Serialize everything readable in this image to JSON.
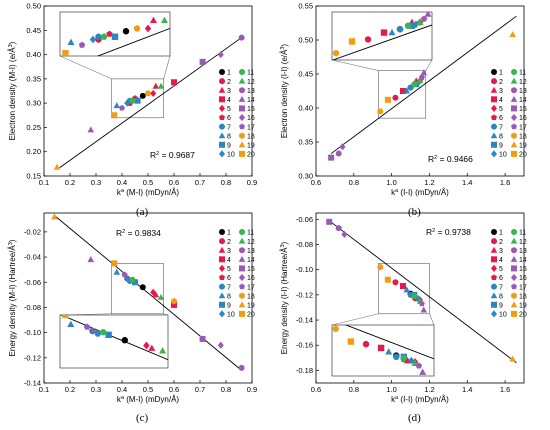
{
  "figure": {
    "panel_letters": [
      "(a)",
      "(b)",
      "(c)",
      "(d)"
    ]
  },
  "colors": {
    "black": "#000000",
    "green": "#3cb44b",
    "red": "#e6194b",
    "purple": "#9b59b6",
    "teal": "#1f9ea0",
    "orange": "#f39c12",
    "blue": "#2e86c1",
    "axis": "#000000",
    "inset_line": "#777777"
  },
  "legend": {
    "numbers": [
      "1",
      "2",
      "3",
      "4",
      "5",
      "6",
      "7",
      "8",
      "9",
      "10",
      "11",
      "12",
      "13",
      "14",
      "15",
      "16",
      "17",
      "18",
      "19",
      "20"
    ],
    "markers": [
      {
        "shape": "circle",
        "color": "#000000"
      },
      {
        "shape": "circle",
        "color": "#e6194b"
      },
      {
        "shape": "triangle",
        "color": "#e6194b"
      },
      {
        "shape": "square",
        "color": "#e6194b"
      },
      {
        "shape": "diamond",
        "color": "#e6194b"
      },
      {
        "shape": "pentagon",
        "color": "#e6194b"
      },
      {
        "shape": "circle",
        "color": "#2e86c1"
      },
      {
        "shape": "triangle",
        "color": "#2e86c1"
      },
      {
        "shape": "square",
        "color": "#2e86c1"
      },
      {
        "shape": "diamond",
        "color": "#2e86c1"
      },
      {
        "shape": "circle",
        "color": "#3cb44b"
      },
      {
        "shape": "triangle",
        "color": "#3cb44b"
      },
      {
        "shape": "circle",
        "color": "#9b59b6"
      },
      {
        "shape": "triangle",
        "color": "#9b59b6"
      },
      {
        "shape": "square",
        "color": "#9b59b6"
      },
      {
        "shape": "diamond",
        "color": "#9b59b6"
      },
      {
        "shape": "pentagon",
        "color": "#9b59b6"
      },
      {
        "shape": "circle",
        "color": "#f39c12"
      },
      {
        "shape": "triangle",
        "color": "#f39c12"
      },
      {
        "shape": "square",
        "color": "#f39c12"
      }
    ]
  },
  "chart_data": [
    {
      "type": "scatter",
      "panel": "(a)",
      "xlabel": "k^a (M-I) (mDyn/Å)",
      "ylabel": "Electron density (M-I) (e/Å^3)",
      "xlim": [
        0.1,
        0.9
      ],
      "ylim": [
        0.15,
        0.5
      ],
      "xticks": [
        "0.1",
        "0.2",
        "0.3",
        "0.4",
        "0.5",
        "0.6",
        "0.7",
        "0.8",
        "0.9"
      ],
      "yticks": [
        "0.15",
        "0.20",
        "0.25",
        "0.30",
        "0.35",
        "0.40",
        "0.45",
        "0.50"
      ],
      "annotation": "R^2 = 0.9687",
      "fit": {
        "x": [
          0.16,
          0.86
        ],
        "y": [
          0.167,
          0.435
        ]
      },
      "zoom": {
        "xlim": [
          0.36,
          0.56
        ],
        "ylim": [
          0.27,
          0.35
        ]
      },
      "points": [
        {
          "id": 1,
          "x": 0.48,
          "y": 0.315
        },
        {
          "id": 2,
          "x": 0.43,
          "y": 0.3
        },
        {
          "id": 3,
          "x": 0.53,
          "y": 0.335
        },
        {
          "id": 4,
          "x": 0.6,
          "y": 0.343
        },
        {
          "id": 5,
          "x": 0.52,
          "y": 0.32
        },
        {
          "id": 6,
          "x": 0.45,
          "y": 0.31
        },
        {
          "id": 7,
          "x": 0.43,
          "y": 0.305
        },
        {
          "id": 8,
          "x": 0.38,
          "y": 0.295
        },
        {
          "id": 9,
          "x": 0.46,
          "y": 0.305
        },
        {
          "id": 10,
          "x": 0.42,
          "y": 0.3
        },
        {
          "id": 11,
          "x": 0.44,
          "y": 0.305
        },
        {
          "id": 12,
          "x": 0.55,
          "y": 0.335
        },
        {
          "id": 13,
          "x": 0.86,
          "y": 0.435
        },
        {
          "id": 14,
          "x": 0.28,
          "y": 0.245
        },
        {
          "id": 15,
          "x": 0.71,
          "y": 0.385
        },
        {
          "id": 16,
          "x": 0.78,
          "y": 0.4
        },
        {
          "id": 17,
          "x": 0.4,
          "y": 0.29
        },
        {
          "id": 18,
          "x": 0.5,
          "y": 0.32
        },
        {
          "id": 19,
          "x": 0.15,
          "y": 0.168
        },
        {
          "id": 20,
          "x": 0.37,
          "y": 0.275
        }
      ]
    },
    {
      "type": "scatter",
      "panel": "(b)",
      "xlabel": "k^a (I-I) (mDyn/Å)",
      "ylabel": "Electron density (I-I) (e/Å^3)",
      "xlim": [
        0.6,
        1.7
      ],
      "ylim": [
        0.3,
        0.55
      ],
      "xticks": [
        "0.6",
        "0.8",
        "1.0",
        "1.2",
        "1.4",
        "1.6"
      ],
      "yticks": [
        "0.30",
        "0.35",
        "0.40",
        "0.45",
        "0.50",
        "0.55"
      ],
      "annotation": "R^2 = 0.9466",
      "fit": {
        "x": [
          0.68,
          1.66
        ],
        "y": [
          0.333,
          0.535
        ]
      },
      "zoom": {
        "xlim": [
          0.93,
          1.18
        ],
        "ylim": [
          0.385,
          0.455
        ]
      },
      "points": [
        {
          "id": 1,
          "x": 1.1,
          "y": 0.43
        },
        {
          "id": 2,
          "x": 1.02,
          "y": 0.415
        },
        {
          "id": 3,
          "x": 1.13,
          "y": 0.44
        },
        {
          "id": 4,
          "x": 1.06,
          "y": 0.425
        },
        {
          "id": 5,
          "x": 1.15,
          "y": 0.44
        },
        {
          "id": 6,
          "x": 1.12,
          "y": 0.435
        },
        {
          "id": 7,
          "x": 1.1,
          "y": 0.43
        },
        {
          "id": 8,
          "x": 1.08,
          "y": 0.425
        },
        {
          "id": 9,
          "x": 1.13,
          "y": 0.435
        },
        {
          "id": 10,
          "x": 1.14,
          "y": 0.437
        },
        {
          "id": 11,
          "x": 1.12,
          "y": 0.435
        },
        {
          "id": 12,
          "x": 1.15,
          "y": 0.44
        },
        {
          "id": 13,
          "x": 0.72,
          "y": 0.333
        },
        {
          "id": 14,
          "x": 1.17,
          "y": 0.452
        },
        {
          "id": 15,
          "x": 0.68,
          "y": 0.327
        },
        {
          "id": 16,
          "x": 0.74,
          "y": 0.343
        },
        {
          "id": 17,
          "x": 1.16,
          "y": 0.445
        },
        {
          "id": 18,
          "x": 0.94,
          "y": 0.395
        },
        {
          "id": 19,
          "x": 1.64,
          "y": 0.508
        },
        {
          "id": 20,
          "x": 0.98,
          "y": 0.412
        }
      ]
    },
    {
      "type": "scatter",
      "panel": "(c)",
      "xlabel": "k^a (M-I) (mDyn/Å)",
      "ylabel": "Energy density (M-I) (Hartree/Å^3)",
      "xlim": [
        0.1,
        0.9
      ],
      "ylim": [
        -0.14,
        -0.005
      ],
      "xticks": [
        "0.1",
        "0.2",
        "0.3",
        "0.4",
        "0.5",
        "0.6",
        "0.7",
        "0.8",
        "0.9"
      ],
      "yticks": [
        "-0.14",
        "-0.12",
        "-0.10",
        "-0.08",
        "-0.06",
        "-0.04",
        "-0.02"
      ],
      "annotation": "R^2 = 0.9834",
      "fit": {
        "x": [
          0.14,
          0.86
        ],
        "y": [
          -0.007,
          -0.13
        ]
      },
      "zoom": {
        "xlim": [
          0.36,
          0.56
        ],
        "ylim": [
          -0.085,
          -0.045
        ]
      },
      "points": [
        {
          "id": 1,
          "x": 0.48,
          "y": -0.064
        },
        {
          "id": 2,
          "x": 0.42,
          "y": -0.057
        },
        {
          "id": 3,
          "x": 0.53,
          "y": -0.07
        },
        {
          "id": 4,
          "x": 0.6,
          "y": -0.078
        },
        {
          "id": 5,
          "x": 0.52,
          "y": -0.068
        },
        {
          "id": 6,
          "x": 0.45,
          "y": -0.06
        },
        {
          "id": 7,
          "x": 0.43,
          "y": -0.059
        },
        {
          "id": 8,
          "x": 0.38,
          "y": -0.052
        },
        {
          "id": 9,
          "x": 0.45,
          "y": -0.06
        },
        {
          "id": 10,
          "x": 0.42,
          "y": -0.057
        },
        {
          "id": 11,
          "x": 0.44,
          "y": -0.058
        },
        {
          "id": 12,
          "x": 0.55,
          "y": -0.072
        },
        {
          "id": 13,
          "x": 0.86,
          "y": -0.128
        },
        {
          "id": 14,
          "x": 0.28,
          "y": -0.042
        },
        {
          "id": 15,
          "x": 0.71,
          "y": -0.105
        },
        {
          "id": 16,
          "x": 0.78,
          "y": -0.11
        },
        {
          "id": 17,
          "x": 0.41,
          "y": -0.054
        },
        {
          "id": 18,
          "x": 0.6,
          "y": -0.075
        },
        {
          "id": 19,
          "x": 0.14,
          "y": -0.008
        },
        {
          "id": 20,
          "x": 0.37,
          "y": -0.045
        }
      ]
    },
    {
      "type": "scatter",
      "panel": "(d)",
      "xlabel": "k^a (I-I) (mDyn/Å)",
      "ylabel": "Energy density (I-I) (Hartree/Å^3)",
      "xlim": [
        0.6,
        1.7
      ],
      "ylim": [
        -0.19,
        -0.055
      ],
      "xticks": [
        "0.6",
        "0.8",
        "1.0",
        "1.2",
        "1.4",
        "1.6"
      ],
      "yticks": [
        "-0.18",
        "-0.16",
        "-0.14",
        "-0.12",
        "-0.10",
        "-0.08",
        "-0.06"
      ],
      "annotation": "R^2 = 0.9738",
      "fit": {
        "x": [
          0.66,
          1.66
        ],
        "y": [
          -0.06,
          -0.174
        ]
      },
      "zoom": {
        "xlim": [
          0.93,
          1.2
        ],
        "ylim": [
          -0.135,
          -0.095
        ]
      },
      "points": [
        {
          "id": 1,
          "x": 1.1,
          "y": -0.119
        },
        {
          "id": 2,
          "x": 1.02,
          "y": -0.11
        },
        {
          "id": 3,
          "x": 1.13,
          "y": -0.123
        },
        {
          "id": 4,
          "x": 1.06,
          "y": -0.113
        },
        {
          "id": 5,
          "x": 1.15,
          "y": -0.124
        },
        {
          "id": 6,
          "x": 1.12,
          "y": -0.122
        },
        {
          "id": 7,
          "x": 1.1,
          "y": -0.12
        },
        {
          "id": 8,
          "x": 1.08,
          "y": -0.116
        },
        {
          "id": 9,
          "x": 1.12,
          "y": -0.12
        },
        {
          "id": 10,
          "x": 1.14,
          "y": -0.123
        },
        {
          "id": 11,
          "x": 1.12,
          "y": -0.121
        },
        {
          "id": 12,
          "x": 1.15,
          "y": -0.125
        },
        {
          "id": 13,
          "x": 0.72,
          "y": -0.067
        },
        {
          "id": 14,
          "x": 1.17,
          "y": -0.132
        },
        {
          "id": 15,
          "x": 0.67,
          "y": -0.062
        },
        {
          "id": 16,
          "x": 0.75,
          "y": -0.072
        },
        {
          "id": 17,
          "x": 1.16,
          "y": -0.127
        },
        {
          "id": 18,
          "x": 0.94,
          "y": -0.098
        },
        {
          "id": 19,
          "x": 1.64,
          "y": -0.171
        },
        {
          "id": 20,
          "x": 0.98,
          "y": -0.108
        }
      ]
    }
  ]
}
